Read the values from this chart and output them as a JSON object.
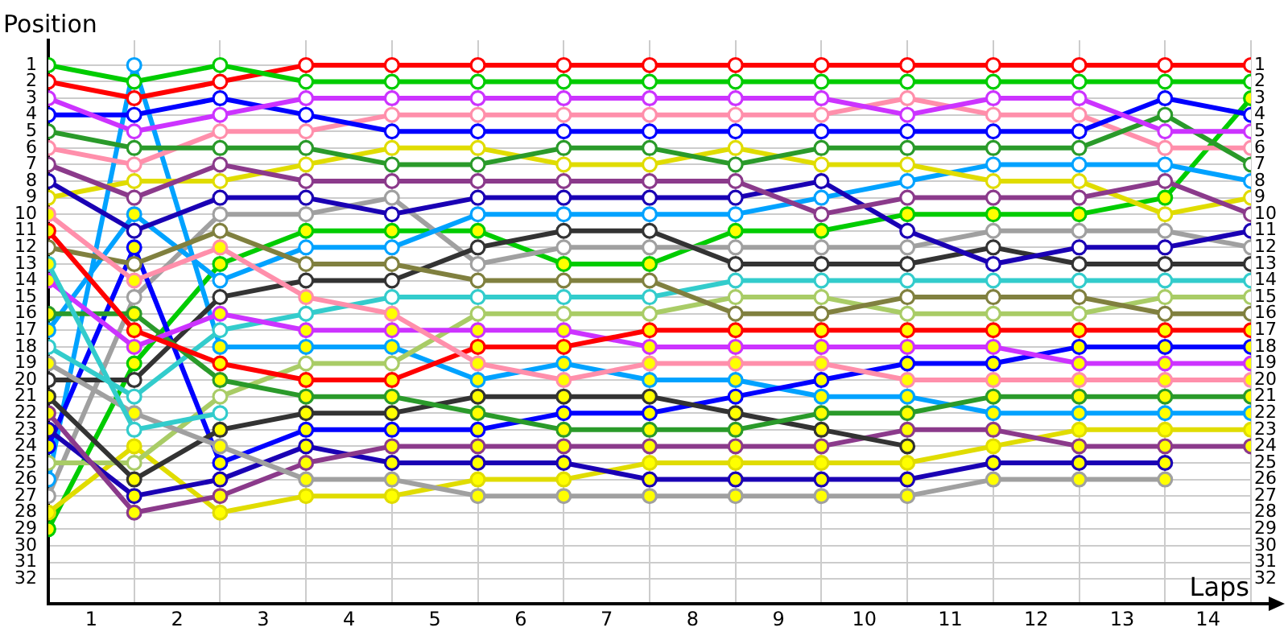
{
  "chart_data": {
    "type": "line",
    "ylabel": "Position",
    "xlabel": "Laps",
    "x": [
      0,
      1,
      2,
      3,
      4,
      5,
      6,
      7,
      8,
      9,
      10,
      11,
      12,
      13,
      14
    ],
    "xlim": [
      0,
      14
    ],
    "xticks": [
      {
        "value": 0,
        "label": null
      },
      {
        "value": 0.5,
        "label": "1"
      },
      {
        "value": 1,
        "label": null
      },
      {
        "value": 1.5,
        "label": "2"
      },
      {
        "value": 2,
        "label": null
      },
      {
        "value": 2.5,
        "label": "3"
      },
      {
        "value": 3,
        "label": null
      },
      {
        "value": 3.5,
        "label": "4"
      },
      {
        "value": 4,
        "label": null
      },
      {
        "value": 4.5,
        "label": "5"
      },
      {
        "value": 5,
        "label": null
      },
      {
        "value": 5.5,
        "label": "6"
      },
      {
        "value": 6,
        "label": null
      },
      {
        "value": 6.5,
        "label": "7"
      },
      {
        "value": 7,
        "label": null
      },
      {
        "value": 7.5,
        "label": "8"
      },
      {
        "value": 8,
        "label": null
      },
      {
        "value": 8.5,
        "label": "9"
      },
      {
        "value": 9,
        "label": null
      },
      {
        "value": 9.5,
        "label": "10"
      },
      {
        "value": 10,
        "label": null
      },
      {
        "value": 10.5,
        "label": "11"
      },
      {
        "value": 11,
        "label": null
      },
      {
        "value": 11.5,
        "label": "12"
      },
      {
        "value": 12,
        "label": null
      },
      {
        "value": 12.5,
        "label": "13"
      },
      {
        "value": 13,
        "label": null
      },
      {
        "value": 13.5,
        "label": "14"
      },
      {
        "value": 14,
        "label": null
      }
    ],
    "ylim": [
      33.5,
      -0.5
    ],
    "yticks": [
      1,
      2,
      3,
      4,
      5,
      6,
      7,
      8,
      9,
      10,
      11,
      12,
      13,
      14,
      15,
      16,
      17,
      18,
      19,
      20,
      21,
      22,
      23,
      24,
      25,
      26,
      27,
      28,
      29,
      30,
      31,
      32
    ],
    "y2lim": [
      33.5,
      -0.5
    ],
    "y2ticks": [
      1,
      2,
      3,
      4,
      5,
      6,
      7,
      8,
      9,
      10,
      11,
      12,
      13,
      14,
      15,
      16,
      17,
      18,
      19,
      20,
      21,
      22,
      23,
      24,
      25,
      26,
      27,
      28,
      29,
      30,
      31,
      32
    ],
    "grid": true,
    "marker": "circle",
    "series": [
      {
        "color": "#00cc00",
        "values": [
          1,
          2,
          1,
          2,
          2,
          2,
          2,
          2,
          2,
          2,
          2,
          2,
          2,
          2,
          2
        ],
        "colors": [
          "#ffffff",
          "#ffffff",
          "#ffffff",
          "#ffffff",
          "#ffffff",
          "#ffffff",
          "#ffffff",
          "#ffffff",
          "#ffffff",
          "#ffffff",
          "#ffffff",
          "#ffffff",
          "#ffffff",
          "#ffffff",
          "#ffffff"
        ]
      },
      {
        "color": "#ff0000",
        "values": [
          2,
          3,
          2,
          1,
          1,
          1,
          1,
          1,
          1,
          1,
          1,
          1,
          1,
          1,
          1
        ],
        "colors": [
          "#ffffff",
          "#ffffff",
          "#ffffff",
          "#ffffff",
          "#ffffff",
          "#ffffff",
          "#ffffff",
          "#ffffff",
          "#ffffff",
          "#ffffff",
          "#ffffff",
          "#ffffff",
          "#ffffff",
          "#ffffff",
          "#ffffff"
        ]
      },
      {
        "color": "#cc33ff",
        "values": [
          3,
          5,
          4,
          3,
          3,
          3,
          3,
          3,
          3,
          3,
          4,
          3,
          3,
          5,
          5
        ],
        "colors": [
          "#ffffff",
          "#ffffff",
          "#ffffff",
          "#ffffff",
          "#ffffff",
          "#ffffff",
          "#ffffff",
          "#ffffff",
          "#ffffff",
          "#ffffff",
          "#ffffff",
          "#ffffff",
          "#ffffff",
          "#ffffff",
          "#ffffff"
        ]
      },
      {
        "color": "#0000ff",
        "values": [
          4,
          4,
          3,
          4,
          5,
          5,
          5,
          5,
          5,
          5,
          5,
          5,
          5,
          3,
          4
        ],
        "colors": [
          "#ffffff",
          "#ffffff",
          "#ffffff",
          "#ffffff",
          "#ffffff",
          "#ffffff",
          "#ffffff",
          "#ffffff",
          "#ffffff",
          "#ffffff",
          "#ffffff",
          "#ffffff",
          "#ffffff",
          "#ffffff",
          "#ffffff"
        ]
      },
      {
        "color": "#2a9a2a",
        "values": [
          5,
          6,
          6,
          6,
          7,
          7,
          6,
          6,
          7,
          6,
          6,
          6,
          6,
          4,
          7
        ],
        "colors": [
          "#ffffff",
          "#ffffff",
          "#ffffff",
          "#ffffff",
          "#ffffff",
          "#ffffff",
          "#ffffff",
          "#ffffff",
          "#ffffff",
          "#ffffff",
          "#ffffff",
          "#ffffff",
          "#ffffff",
          "#ffffff",
          "#ffffff"
        ]
      },
      {
        "color": "#ff8fab",
        "values": [
          6,
          7,
          5,
          5,
          4,
          4,
          4,
          4,
          4,
          4,
          3,
          4,
          4,
          6,
          6
        ],
        "colors": [
          "#ffffff",
          "#ffffff",
          "#ffffff",
          "#ffffff",
          "#ffffff",
          "#ffffff",
          "#ffffff",
          "#ffffff",
          "#ffffff",
          "#ffffff",
          "#ffffff",
          "#ffffff",
          "#ffffff",
          "#ffffff",
          "#ffffff"
        ]
      },
      {
        "color": "#8b3a8b",
        "values": [
          7,
          9,
          7,
          8,
          8,
          8,
          8,
          8,
          8,
          10,
          9,
          9,
          9,
          8,
          10
        ],
        "colors": [
          "#ffffff",
          "#ffffff",
          "#ffffff",
          "#ffffff",
          "#ffffff",
          "#ffffff",
          "#ffffff",
          "#ffffff",
          "#ffffff",
          "#ffffff",
          "#ffffff",
          "#ffffff",
          "#ffffff",
          "#ffffff",
          "#ffffff"
        ]
      },
      {
        "color": "#1a00b4",
        "values": [
          8,
          11,
          9,
          9,
          10,
          9,
          9,
          9,
          9,
          8,
          11,
          13,
          12,
          12,
          11
        ],
        "colors": [
          "#ffffff",
          "#ffffff",
          "#ffffff",
          "#ffffff",
          "#ffffff",
          "#ffffff",
          "#ffffff",
          "#ffffff",
          "#ffffff",
          "#ffffff",
          "#ffffff",
          "#ffffff",
          "#ffffff",
          "#ffffff",
          "#ffffff"
        ]
      },
      {
        "color": "#e0dc00",
        "values": [
          9,
          8,
          8,
          7,
          6,
          6,
          7,
          7,
          6,
          7,
          7,
          8,
          8,
          10,
          9
        ],
        "colors": [
          "#ffffff",
          "#ffffff",
          "#ffffff",
          "#ffffff",
          "#ffffff",
          "#ffffff",
          "#ffffff",
          "#ffffff",
          "#ffffff",
          "#ffffff",
          "#ffffff",
          "#ffffff",
          "#ffffff",
          "#ffffff",
          "#ffffff"
        ]
      },
      {
        "color": "#ff8fab",
        "values": [
          10,
          14,
          12,
          15,
          16,
          19,
          20,
          19,
          19,
          19,
          20,
          20,
          20,
          20,
          20
        ],
        "colors": [
          "#ffff00",
          "#ffff00",
          "#ffff00",
          "#ffff00",
          "#ffff00",
          "#ffff00",
          "#ffff00",
          "#ffff00",
          "#ffff00",
          "#ffff00",
          "#ffff00",
          "#ffff00",
          "#ffff00",
          "#ffff00",
          "#ffff00"
        ]
      },
      {
        "color": "#ff0000",
        "values": [
          11,
          17,
          19,
          20,
          20,
          18,
          18,
          17,
          17,
          17,
          17,
          17,
          17,
          17,
          17
        ],
        "colors": [
          "#ffff00",
          "#ffff00",
          "#ffff00",
          "#ffff00",
          "#ffff00",
          "#ffff00",
          "#ffff00",
          "#ffff00",
          "#ffff00",
          "#ffff00",
          "#ffff00",
          "#ffff00",
          "#ffff00",
          "#ffff00",
          "#ffff00"
        ]
      },
      {
        "color": "#80803f",
        "values": [
          12,
          13,
          11,
          13,
          13,
          14,
          14,
          14,
          16,
          16,
          15,
          15,
          15,
          16,
          16
        ],
        "colors": [
          "#ffffff",
          "#ffffff",
          "#ffffff",
          "#ffffff",
          "#ffffff",
          "#ffffff",
          "#ffffff",
          "#ffffff",
          "#ffffff",
          "#ffffff",
          "#ffffff",
          "#ffffff",
          "#ffffff",
          "#ffffff",
          "#ffffff"
        ]
      },
      {
        "color": "#33cccc",
        "values": [
          13,
          23,
          22,
          null,
          null,
          null,
          null,
          null,
          null,
          null,
          null,
          null,
          null,
          null,
          null
        ],
        "colors": [
          "#ffff00",
          "#ffffff",
          "#ffffff",
          null,
          null,
          null,
          null,
          null,
          null,
          null,
          null,
          null,
          null,
          null,
          null
        ]
      },
      {
        "color": "#cc33ff",
        "values": [
          14,
          18,
          16,
          17,
          17,
          17,
          17,
          18,
          18,
          18,
          18,
          18,
          19,
          19,
          19
        ],
        "colors": [
          "#ffff00",
          "#ffff00",
          "#ffff00",
          "#ffff00",
          "#ffff00",
          "#ffff00",
          "#ffff00",
          "#ffff00",
          "#ffff00",
          "#ffff00",
          "#ffff00",
          "#ffff00",
          "#ffff00",
          "#ffff00",
          "#ffff00"
        ]
      },
      {
        "color": "#2a9a2a",
        "values": [
          16,
          16,
          20,
          21,
          21,
          22,
          23,
          23,
          23,
          22,
          22,
          21,
          21,
          21,
          21
        ],
        "colors": [
          "#ffff00",
          "#ffff00",
          "#ffff00",
          "#ffff00",
          "#ffff00",
          "#ffff00",
          "#ffff00",
          "#ffff00",
          "#ffff00",
          "#ffff00",
          "#ffff00",
          "#ffff00",
          "#ffff00",
          "#ffff00",
          "#ffff00"
        ]
      },
      {
        "color": "#00a2ff",
        "values": [
          17,
          10,
          14,
          12,
          12,
          10,
          10,
          10,
          10,
          9,
          8,
          7,
          7,
          7,
          8
        ],
        "colors": [
          "#ffff00",
          "#ffff00",
          "#ffffff",
          "#ffffff",
          "#ffffff",
          "#ffffff",
          "#ffffff",
          "#ffffff",
          "#ffffff",
          "#ffffff",
          "#ffffff",
          "#ffffff",
          "#ffffff",
          "#ffffff",
          "#ffffff"
        ]
      },
      {
        "color": "#33cccc",
        "values": [
          18,
          21,
          17,
          16,
          15,
          15,
          15,
          15,
          14,
          14,
          14,
          14,
          14,
          14,
          14
        ],
        "colors": [
          "#ffffff",
          "#ffffff",
          "#ffffff",
          "#ffffff",
          "#ffffff",
          "#ffffff",
          "#ffffff",
          "#ffffff",
          "#ffffff",
          "#ffffff",
          "#ffffff",
          "#ffffff",
          "#ffffff",
          "#ffffff",
          "#ffffff"
        ]
      },
      {
        "color": "#a0a0a0",
        "values": [
          19,
          22,
          24,
          26,
          26,
          27,
          27,
          27,
          27,
          27,
          27,
          26,
          26,
          26,
          null
        ],
        "colors": [
          "#ffff00",
          "#ffff00",
          "#ffff00",
          "#ffff00",
          "#ffff00",
          "#ffff00",
          "#ffff00",
          "#ffff00",
          "#ffff00",
          "#ffff00",
          "#ffff00",
          "#ffff00",
          "#ffff00",
          "#ffff00",
          null
        ]
      },
      {
        "color": "#333333",
        "values": [
          20,
          20,
          15,
          14,
          14,
          12,
          11,
          11,
          13,
          13,
          13,
          12,
          13,
          13,
          13
        ],
        "colors": [
          "#ffffff",
          "#ffffff",
          "#ffffff",
          "#ffffff",
          "#ffffff",
          "#ffffff",
          "#ffffff",
          "#ffffff",
          "#ffffff",
          "#ffffff",
          "#ffffff",
          "#ffffff",
          "#ffffff",
          "#ffffff",
          "#ffffff"
        ]
      },
      {
        "color": "#333333",
        "values": [
          21,
          26,
          23,
          22,
          22,
          21,
          21,
          21,
          22,
          23,
          24,
          null,
          null,
          null,
          null
        ],
        "colors": [
          "#ffff00",
          "#ffff00",
          "#ffff00",
          "#ffff00",
          "#ffff00",
          "#ffff00",
          "#ffff00",
          "#ffff00",
          "#ffff00",
          "#ffff00",
          "#ffff00",
          null,
          null,
          null,
          null
        ]
      },
      {
        "color": "#8b3a8b",
        "values": [
          22,
          28,
          27,
          25,
          24,
          24,
          24,
          24,
          24,
          24,
          23,
          23,
          24,
          24,
          24
        ],
        "colors": [
          "#ffff00",
          "#ffff00",
          "#ffff00",
          "#ffff00",
          "#ffff00",
          "#ffff00",
          "#ffff00",
          "#ffff00",
          "#ffff00",
          "#ffff00",
          "#ffff00",
          "#ffff00",
          "#ffff00",
          "#ffff00",
          "#ffff00"
        ]
      },
      {
        "color": "#1a00b4",
        "values": [
          23,
          27,
          26,
          24,
          25,
          25,
          25,
          26,
          26,
          26,
          26,
          25,
          25,
          25,
          null
        ],
        "colors": [
          "#ffff00",
          "#ffff00",
          "#ffff00",
          "#ffff00",
          "#ffff00",
          "#ffff00",
          "#ffff00",
          "#ffff00",
          "#ffff00",
          "#ffff00",
          "#ffff00",
          "#ffff00",
          "#ffff00",
          "#ffff00",
          null
        ]
      },
      {
        "color": "#0000ff",
        "values": [
          24,
          12,
          25,
          23,
          23,
          23,
          22,
          22,
          21,
          20,
          19,
          19,
          18,
          18,
          18
        ],
        "colors": [
          "#ffff00",
          "#ffff00",
          "#ffff00",
          "#ffff00",
          "#ffff00",
          "#ffff00",
          "#ffff00",
          "#ffff00",
          "#ffff00",
          "#ffff00",
          "#ffff00",
          "#ffff00",
          "#ffff00",
          "#ffff00",
          "#ffff00"
        ]
      },
      {
        "color": "#a9cc66",
        "values": [
          25,
          25,
          21,
          19,
          19,
          16,
          16,
          16,
          15,
          15,
          16,
          16,
          16,
          15,
          15
        ],
        "colors": [
          "#ffffff",
          "#ffffff",
          "#ffffff",
          "#ffffff",
          "#ffffff",
          "#ffffff",
          "#ffffff",
          "#ffffff",
          "#ffffff",
          "#ffffff",
          "#ffffff",
          "#ffffff",
          "#ffffff",
          "#ffffff",
          "#ffffff"
        ]
      },
      {
        "color": "#00a2ff",
        "values": [
          26,
          1,
          18,
          18,
          18,
          20,
          19,
          20,
          20,
          21,
          21,
          22,
          22,
          22,
          22
        ],
        "colors": [
          "#ffffff",
          "#ffffff",
          "#ffff00",
          "#ffff00",
          "#ffff00",
          "#ffff00",
          "#ffff00",
          "#ffff00",
          "#ffff00",
          "#ffff00",
          "#ffff00",
          "#ffff00",
          "#ffff00",
          "#ffff00",
          "#ffff00"
        ]
      },
      {
        "color": "#a0a0a0",
        "values": [
          27,
          15,
          10,
          10,
          9,
          13,
          12,
          12,
          12,
          12,
          12,
          11,
          11,
          11,
          12
        ],
        "colors": [
          "#ffffff",
          "#ffffff",
          "#ffffff",
          "#ffffff",
          "#ffffff",
          "#ffffff",
          "#ffffff",
          "#ffffff",
          "#ffffff",
          "#ffffff",
          "#ffffff",
          "#ffffff",
          "#ffffff",
          "#ffffff",
          "#ffffff"
        ]
      },
      {
        "color": "#e0dc00",
        "values": [
          28,
          24,
          28,
          27,
          27,
          26,
          26,
          25,
          25,
          25,
          25,
          24,
          23,
          23,
          23
        ],
        "colors": [
          "#ffff00",
          "#ffff00",
          "#ffff00",
          "#ffff00",
          "#ffff00",
          "#ffff00",
          "#ffff00",
          "#ffff00",
          "#ffff00",
          "#ffff00",
          "#ffff00",
          "#ffff00",
          "#ffff00",
          "#ffff00",
          "#ffff00"
        ]
      },
      {
        "color": "#00cc00",
        "values": [
          29,
          19,
          13,
          11,
          11,
          11,
          13,
          13,
          11,
          11,
          10,
          10,
          10,
          9,
          3
        ],
        "colors": [
          "#ffff00",
          "#ffff00",
          "#ffff00",
          "#ffff00",
          "#ffff00",
          "#ffff00",
          "#ffff00",
          "#ffff00",
          "#ffff00",
          "#ffff00",
          "#ffff00",
          "#ffff00",
          "#ffff00",
          "#ffff00",
          "#ffff00"
        ]
      }
    ]
  }
}
